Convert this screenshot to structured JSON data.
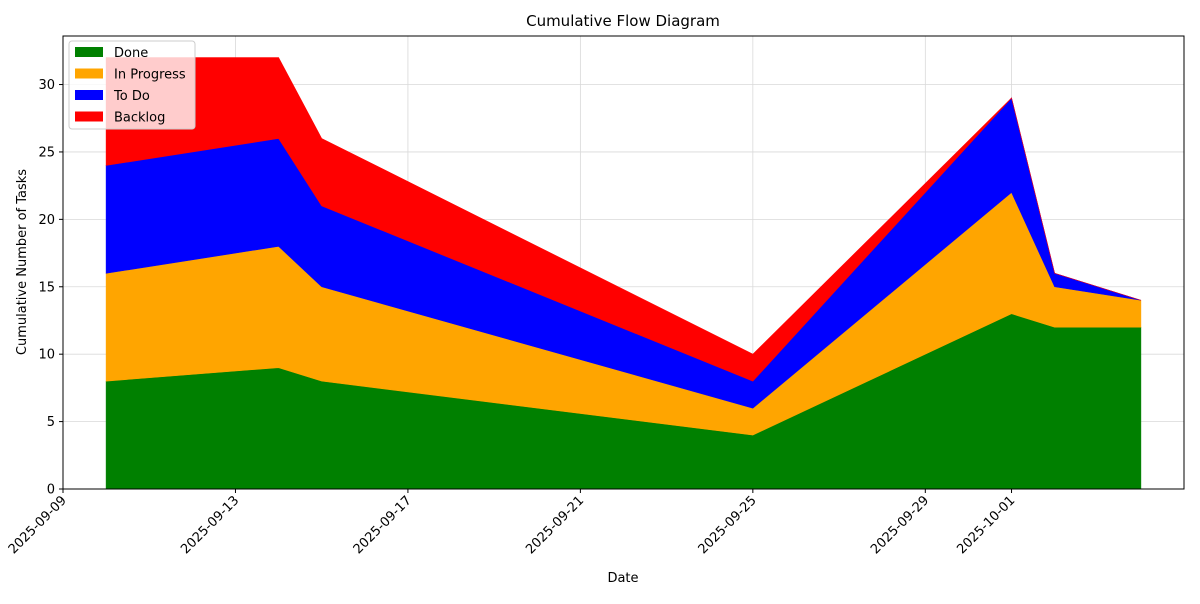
{
  "chart_data": {
    "type": "area",
    "title": "Cumulative Flow Diagram",
    "xlabel": "Date",
    "ylabel": "Cumulative Number of Tasks",
    "x": [
      "2025-09-10",
      "2025-09-14",
      "2025-09-15",
      "2025-09-25",
      "2025-10-01",
      "2025-10-02",
      "2025-10-04"
    ],
    "series": [
      {
        "name": "Done",
        "values": [
          8,
          9,
          8,
          4,
          13,
          12,
          12
        ],
        "color": "#008000"
      },
      {
        "name": "In Progress",
        "values": [
          8,
          9,
          7,
          2,
          9,
          3,
          2
        ],
        "color": "#ffa500"
      },
      {
        "name": "To Do",
        "values": [
          8,
          8,
          6,
          2,
          7,
          1,
          0
        ],
        "color": "#0000ff"
      },
      {
        "name": "Backlog",
        "values": [
          8,
          6,
          5,
          2,
          0,
          0,
          0
        ],
        "color": "#ff0000"
      }
    ],
    "xlim": [
      "2025-09-09",
      "2025-10-05"
    ],
    "ylim": [
      0,
      33.6
    ],
    "x_ticks": [
      "2025-09-09",
      "2025-09-13",
      "2025-09-17",
      "2025-09-21",
      "2025-09-25",
      "2025-09-29",
      "2025-10-01"
    ],
    "y_ticks": [
      "0",
      "5",
      "10",
      "15",
      "20",
      "25",
      "30"
    ],
    "grid": true,
    "legend_position": "upper-left"
  }
}
